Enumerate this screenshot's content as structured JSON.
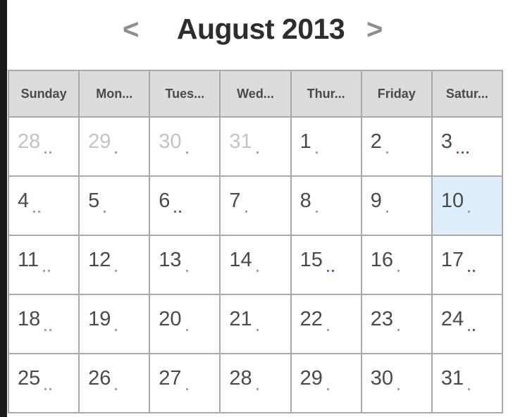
{
  "calendar": {
    "prev_label": "<",
    "next_label": ">",
    "title": "August 2013",
    "weekdays": [
      "Sunday",
      "Mon...",
      "Tues...",
      "Wed...",
      "Thur...",
      "Friday",
      "Satur..."
    ],
    "today": "10",
    "weeks": [
      [
        {
          "day": "28",
          "muted": true,
          "dots": [
            "#9a9a9a",
            "#9a9a9a"
          ]
        },
        {
          "day": "29",
          "muted": true,
          "dots": [
            "#9a9a9a"
          ]
        },
        {
          "day": "30",
          "muted": true,
          "dots": [
            "#9a9a9a"
          ]
        },
        {
          "day": "31",
          "muted": true,
          "dots": [
            "#9a9a9a"
          ]
        },
        {
          "day": "1",
          "muted": false,
          "dots": [
            "#9a9a9a"
          ]
        },
        {
          "day": "2",
          "muted": false,
          "dots": [
            "#9a9a9a"
          ]
        },
        {
          "day": "3",
          "muted": false,
          "dots": [
            "#d23b2f",
            "#3a4fc4",
            "#555555"
          ]
        }
      ],
      [
        {
          "day": "4",
          "muted": false,
          "dots": [
            "#9a9a9a",
            "#9a9a9a"
          ]
        },
        {
          "day": "5",
          "muted": false,
          "dots": [
            "#9a9a9a"
          ]
        },
        {
          "day": "6",
          "muted": false,
          "dots": [
            "#2f6fd0",
            "#555555"
          ]
        },
        {
          "day": "7",
          "muted": false,
          "dots": [
            "#9a9a9a"
          ]
        },
        {
          "day": "8",
          "muted": false,
          "dots": [
            "#9a9a9a"
          ]
        },
        {
          "day": "9",
          "muted": false,
          "dots": [
            "#9a9a9a"
          ]
        },
        {
          "day": "10",
          "muted": false,
          "dots": [
            "#9a9a9a"
          ]
        }
      ],
      [
        {
          "day": "11",
          "muted": false,
          "dots": [
            "#9a9a9a",
            "#9a9a9a"
          ]
        },
        {
          "day": "12",
          "muted": false,
          "dots": [
            "#9a9a9a"
          ]
        },
        {
          "day": "13",
          "muted": false,
          "dots": [
            "#9a9a9a"
          ]
        },
        {
          "day": "14",
          "muted": false,
          "dots": [
            "#9a9a9a"
          ]
        },
        {
          "day": "15",
          "muted": false,
          "dots": [
            "#2f6fd0",
            "#555555"
          ]
        },
        {
          "day": "16",
          "muted": false,
          "dots": [
            "#9a9a9a"
          ]
        },
        {
          "day": "17",
          "muted": false,
          "dots": [
            "#3a4fc4",
            "#555555"
          ]
        }
      ],
      [
        {
          "day": "18",
          "muted": false,
          "dots": [
            "#9a9a9a",
            "#9a9a9a"
          ]
        },
        {
          "day": "19",
          "muted": false,
          "dots": [
            "#9a9a9a"
          ]
        },
        {
          "day": "20",
          "muted": false,
          "dots": [
            "#9a9a9a"
          ]
        },
        {
          "day": "21",
          "muted": false,
          "dots": [
            "#9a9a9a"
          ]
        },
        {
          "day": "22",
          "muted": false,
          "dots": [
            "#9a9a9a"
          ]
        },
        {
          "day": "23",
          "muted": false,
          "dots": [
            "#9a9a9a"
          ]
        },
        {
          "day": "24",
          "muted": false,
          "dots": [
            "#6b8f3a",
            "#555555"
          ]
        }
      ],
      [
        {
          "day": "25",
          "muted": false,
          "dots": [
            "#9a9a9a",
            "#9a9a9a"
          ]
        },
        {
          "day": "26",
          "muted": false,
          "dots": [
            "#9a9a9a"
          ]
        },
        {
          "day": "27",
          "muted": false,
          "dots": [
            "#9a9a9a"
          ]
        },
        {
          "day": "28",
          "muted": false,
          "dots": [
            "#9a9a9a"
          ]
        },
        {
          "day": "29",
          "muted": false,
          "dots": [
            "#9a9a9a"
          ]
        },
        {
          "day": "30",
          "muted": false,
          "dots": [
            "#9a9a9a"
          ]
        },
        {
          "day": "31",
          "muted": false,
          "dots": [
            "#9a9a9a"
          ]
        }
      ]
    ]
  },
  "colors": {
    "header_bg": "#dcdcdc",
    "grid_border": "#a9a9a9",
    "today_bg": "#deeefb",
    "muted_text": "#c3c3c3",
    "text": "#4a4a4a"
  }
}
